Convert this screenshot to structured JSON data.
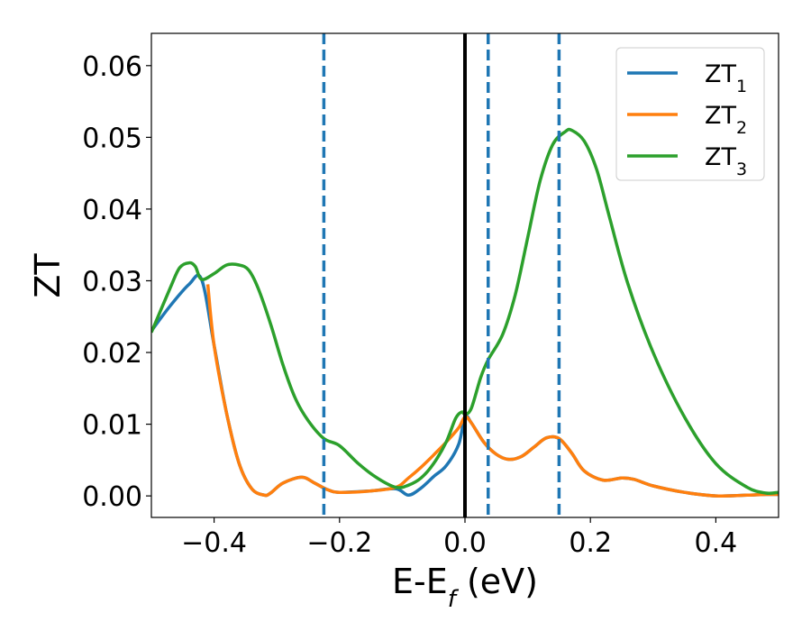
{
  "chart_data": {
    "type": "line",
    "title": "",
    "xlabel": {
      "main": "E-E",
      "sub": "f",
      "suffix": " (eV)"
    },
    "ylabel": "ZT",
    "xlim": [
      -0.5,
      0.5
    ],
    "ylim": [
      -0.003,
      0.0645
    ],
    "xticks": [
      -0.4,
      -0.2,
      0.0,
      0.2,
      0.4
    ],
    "xtick_labels": [
      "−0.4",
      "−0.2",
      "0.0",
      "0.2",
      "0.4"
    ],
    "yticks": [
      0.0,
      0.01,
      0.02,
      0.03,
      0.04,
      0.05,
      0.06
    ],
    "ytick_labels": [
      "0.00",
      "0.01",
      "0.02",
      "0.03",
      "0.04",
      "0.05",
      "0.06"
    ],
    "grid": false,
    "legend_position": "top-right",
    "vlines": [
      {
        "x": 0.0,
        "style": "solid",
        "color": "#000000"
      },
      {
        "x": -0.225,
        "style": "dashed",
        "color": "#1f77b4"
      },
      {
        "x": 0.037,
        "style": "dashed",
        "color": "#1f77b4"
      },
      {
        "x": 0.15,
        "style": "dashed",
        "color": "#1f77b4"
      }
    ],
    "series": [
      {
        "name": "ZT",
        "sub": "1",
        "color": "#1f77b4",
        "x": [
          -0.5,
          -0.47,
          -0.44,
          -0.42,
          -0.4,
          -0.38,
          -0.36,
          -0.34,
          -0.32,
          -0.31,
          -0.29,
          -0.26,
          -0.24,
          -0.22,
          -0.2,
          -0.15,
          -0.11,
          -0.09,
          -0.07,
          -0.05,
          -0.03,
          -0.01,
          0.0,
          0.01,
          0.03,
          0.05,
          0.07,
          0.09,
          0.11,
          0.13,
          0.15,
          0.17,
          0.19,
          0.22,
          0.25,
          0.27,
          0.3,
          0.35,
          0.4,
          0.45,
          0.48,
          0.5
        ],
        "y": [
          0.023,
          0.0265,
          0.0295,
          0.0302,
          0.021,
          0.0115,
          0.0045,
          0.001,
          0.0001,
          0.0004,
          0.0018,
          0.0026,
          0.0018,
          0.0009,
          0.0005,
          0.0007,
          0.001,
          0.0001,
          0.0011,
          0.0027,
          0.0042,
          0.0072,
          0.011,
          0.0102,
          0.0075,
          0.0058,
          0.0051,
          0.0055,
          0.0068,
          0.0081,
          0.008,
          0.006,
          0.0035,
          0.0022,
          0.0025,
          0.0023,
          0.0014,
          0.0005,
          0.0,
          0.0001,
          0.0002,
          0.0002
        ]
      },
      {
        "name": "ZT",
        "sub": "2",
        "color": "#ff7f0e",
        "x": [
          -0.41,
          -0.4,
          -0.38,
          -0.36,
          -0.34,
          -0.32,
          -0.31,
          -0.29,
          -0.26,
          -0.24,
          -0.22,
          -0.2,
          -0.15,
          -0.11,
          -0.09,
          -0.07,
          -0.05,
          -0.03,
          -0.01,
          0.0,
          0.01,
          0.03,
          0.05,
          0.07,
          0.09,
          0.11,
          0.13,
          0.15,
          0.17,
          0.19,
          0.22,
          0.25,
          0.27,
          0.3,
          0.35,
          0.4,
          0.45,
          0.48,
          0.5
        ],
        "y": [
          0.0295,
          0.021,
          0.0115,
          0.0045,
          0.001,
          0.0001,
          0.0004,
          0.0018,
          0.0026,
          0.0018,
          0.0009,
          0.0005,
          0.0007,
          0.0012,
          0.0025,
          0.004,
          0.0057,
          0.0075,
          0.0095,
          0.011,
          0.0102,
          0.0075,
          0.0058,
          0.0051,
          0.0055,
          0.0068,
          0.0081,
          0.008,
          0.006,
          0.0035,
          0.0022,
          0.0025,
          0.0023,
          0.0014,
          0.0005,
          0.0,
          0.0001,
          0.0002,
          0.0002
        ]
      },
      {
        "name": "ZT",
        "sub": "3",
        "color": "#2ca02c",
        "x": [
          -0.5,
          -0.47,
          -0.455,
          -0.44,
          -0.43,
          -0.42,
          -0.4,
          -0.38,
          -0.36,
          -0.345,
          -0.33,
          -0.31,
          -0.29,
          -0.27,
          -0.25,
          -0.225,
          -0.2,
          -0.17,
          -0.14,
          -0.11,
          -0.09,
          -0.07,
          -0.05,
          -0.03,
          -0.015,
          -0.005,
          0.0,
          0.01,
          0.025,
          0.037,
          0.06,
          0.08,
          0.1,
          0.12,
          0.14,
          0.16,
          0.17,
          0.19,
          0.21,
          0.23,
          0.26,
          0.3,
          0.35,
          0.4,
          0.45,
          0.48,
          0.5
        ],
        "y": [
          0.0228,
          0.029,
          0.0318,
          0.0325,
          0.032,
          0.0302,
          0.031,
          0.0322,
          0.0322,
          0.0315,
          0.029,
          0.024,
          0.0182,
          0.0135,
          0.0105,
          0.008,
          0.007,
          0.0045,
          0.0025,
          0.0012,
          0.0015,
          0.0025,
          0.0045,
          0.0075,
          0.0108,
          0.0117,
          0.0114,
          0.0122,
          0.0165,
          0.019,
          0.0225,
          0.028,
          0.036,
          0.044,
          0.049,
          0.0508,
          0.051,
          0.0495,
          0.0455,
          0.039,
          0.0295,
          0.02,
          0.011,
          0.0045,
          0.0012,
          0.0004,
          0.0005
        ]
      }
    ]
  }
}
